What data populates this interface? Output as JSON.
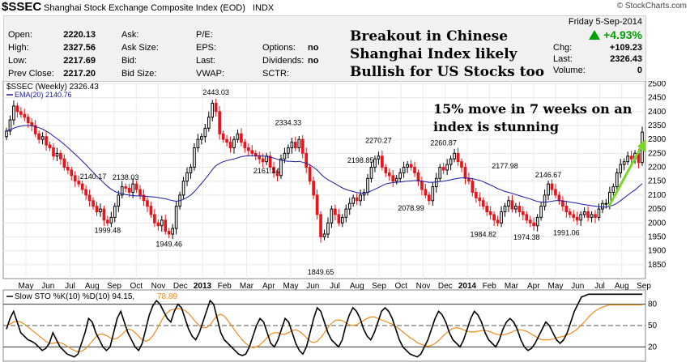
{
  "header": {
    "symbol": "$SSEC",
    "name": "Shanghai Stock Exchange Composite Index (EOD)",
    "exchange": "INDX",
    "watermark": "© StockCharts.com"
  },
  "quote": {
    "col1": [
      [
        "Open:",
        "2220.13"
      ],
      [
        "High:",
        "2327.56"
      ],
      [
        "Low:",
        "2217.69"
      ],
      [
        "Prev Close:",
        "2217.20"
      ]
    ],
    "col2": [
      "Ask:",
      "Ask Size:",
      "Bid:",
      "Bid Size:"
    ],
    "col3": [
      "P/E:",
      "EPS:",
      "Last:",
      "VWAP:"
    ],
    "col4": [
      [
        "Options:",
        "no"
      ],
      [
        "Dividends:",
        "no"
      ],
      [
        "SCTR:",
        ""
      ]
    ],
    "date": "Friday  5-Sep-2014",
    "change_pct": "+4.93%",
    "chg_label": "Chg:",
    "chg_value": "+109.23",
    "last_label": "Last:",
    "last_value": "2326.43",
    "volume_label": "Volume:",
    "volume_value": "0"
  },
  "headline": "Breakout in Chinese\nShanghai Index likely\nBullish for US Stocks too",
  "annotation": "15% move in 7 weeks on an\nindex is stunning",
  "colors": {
    "up": "#000000",
    "down": "#e8141a",
    "ema": "#1a1aa0",
    "sto_k": "#000000",
    "sto_d": "#f08a1c",
    "arrow": "#7cd62a",
    "change_green": "#00a000"
  },
  "chart_data": {
    "type": "candlestick",
    "legend_price": "$SSEC (Weekly) 2326.43",
    "legend_ema": "EMA(20) 2140.76",
    "ylim": [
      1800,
      2510
    ],
    "yticks": [
      1850,
      1900,
      1950,
      2000,
      2050,
      2100,
      2150,
      2200,
      2250,
      2300,
      2350,
      2400,
      2450,
      2500
    ],
    "xticks": [
      "May",
      "Jun",
      "Jul",
      "Aug",
      "Sep",
      "Oct",
      "Nov",
      "Dec",
      "2013",
      "Feb",
      "Mar",
      "Apr",
      "May",
      "Jun",
      "Jul",
      "Aug",
      "Sep",
      "Oct",
      "Nov",
      "Dec",
      "2014",
      "Feb",
      "Mar",
      "Apr",
      "May",
      "Jun",
      "Jul",
      "Aug",
      "Sep"
    ],
    "close": [
      2330,
      2370,
      2420,
      2400,
      2390,
      2380,
      2360,
      2350,
      2320,
      2300,
      2310,
      2280,
      2270,
      2240,
      2250,
      2230,
      2200,
      2190,
      2170,
      2150,
      2140,
      2120,
      2100,
      2080,
      2060,
      2040,
      2050,
      2010,
      2000,
      2020,
      2060,
      2100,
      2130,
      2125,
      2110,
      2140,
      2120,
      2100,
      2080,
      2060,
      2030,
      2000,
      1990,
      2010,
      1970,
      1960,
      1980,
      2060,
      2100,
      2150,
      2180,
      2200,
      2270,
      2300,
      2310,
      2340,
      2380,
      2430,
      2400,
      2320,
      2300,
      2290,
      2270,
      2300,
      2320,
      2290,
      2270,
      2260,
      2250,
      2240,
      2230,
      2220,
      2240,
      2200,
      2180,
      2170,
      2230,
      2250,
      2270,
      2290,
      2270,
      2300,
      2250,
      2200,
      2150,
      2100,
      2030,
      1950,
      1960,
      2000,
      2050,
      2030,
      2000,
      2020,
      2050,
      2070,
      2090,
      2080,
      2100,
      2110,
      2160,
      2200,
      2230,
      2240,
      2200,
      2180,
      2170,
      2150,
      2160,
      2180,
      2200,
      2210,
      2200,
      2180,
      2150,
      2120,
      2100,
      2080,
      2130,
      2160,
      2200,
      2190,
      2210,
      2230,
      2250,
      2220,
      2200,
      2160,
      2150,
      2110,
      2090,
      2080,
      2060,
      2040,
      2030,
      2010,
      2000,
      2040,
      2060,
      2080,
      2050,
      2060,
      2040,
      2030,
      2010,
      2000,
      1990,
      2020,
      2060,
      2100,
      2140,
      2120,
      2100,
      2080,
      2060,
      2040,
      2030,
      2020,
      2010,
      2030,
      2040,
      2020,
      2030,
      2020,
      2050,
      2070,
      2070,
      2110,
      2130,
      2180,
      2210,
      2220,
      2240,
      2230,
      2250,
      2217,
      2326
    ],
    "ema": [
      2330,
      2335,
      2340,
      2345,
      2348,
      2350,
      2350,
      2349,
      2346,
      2342,
      2337,
      2330,
      2322,
      2312,
      2303,
      2293,
      2282,
      2271,
      2259,
      2247,
      2235,
      2222,
      2209,
      2195,
      2182,
      2168,
      2156,
      2143,
      2131,
      2121,
      2113,
      2108,
      2105,
      2102,
      2100,
      2098,
      2097,
      2097,
      2096,
      2095,
      2094,
      2093,
      2091,
      2089,
      2087,
      2083,
      2080,
      2078,
      2080,
      2085,
      2092,
      2100,
      2112,
      2127,
      2142,
      2158,
      2174,
      2192,
      2206,
      2214,
      2220,
      2224,
      2227,
      2230,
      2234,
      2238,
      2240,
      2241,
      2242,
      2242,
      2241,
      2240,
      2239,
      2236,
      2233,
      2229,
      2225,
      2223,
      2221,
      2221,
      2220,
      2221,
      2218,
      2214,
      2208,
      2200,
      2190,
      2176,
      2164,
      2155,
      2148,
      2141,
      2133,
      2126,
      2120,
      2116,
      2113,
      2109,
      2107,
      2106,
      2110,
      2115,
      2121,
      2127,
      2134,
      2140,
      2143,
      2145,
      2146,
      2147,
      2149,
      2150,
      2151,
      2152,
      2152,
      2150,
      2148,
      2146,
      2146,
      2147,
      2149,
      2150,
      2152,
      2155,
      2158,
      2160,
      2162,
      2162,
      2161,
      2159,
      2156,
      2153,
      2148,
      2142,
      2136,
      2130,
      2123,
      2118,
      2113,
      2110,
      2106,
      2102,
      2098,
      2094,
      2090,
      2086,
      2081,
      2077,
      2075,
      2074,
      2076,
      2078,
      2080,
      2080,
      2079,
      2077,
      2075,
      2073,
      2071,
      2068,
      2066,
      2064,
      2062,
      2060,
      2058,
      2057,
      2057,
      2060,
      2064,
      2071,
      2080,
      2090,
      2100,
      2110,
      2118,
      2130,
      2141
    ],
    "annotations": [
      {
        "label": "2140.17",
        "x": 24,
        "y": 2140.17
      },
      {
        "label": "1999.48",
        "x": 28,
        "y": 1999.48
      },
      {
        "label": "2138.03",
        "x": 33,
        "y": 2138.03
      },
      {
        "label": "1949.46",
        "x": 45,
        "y": 1949.46
      },
      {
        "label": "2443.03",
        "x": 58,
        "y": 2443.03
      },
      {
        "label": "2161.14",
        "x": 72,
        "y": 2161.14
      },
      {
        "label": "2334.33",
        "x": 78,
        "y": 2334.33
      },
      {
        "label": "1849.65",
        "x": 87,
        "y": 1849.65
      },
      {
        "label": "2198.85",
        "x": 98,
        "y": 2198.85
      },
      {
        "label": "2270.27",
        "x": 103,
        "y": 2270.27
      },
      {
        "label": "2078.99",
        "x": 112,
        "y": 2078.99
      },
      {
        "label": "2260.87",
        "x": 121,
        "y": 2260.87
      },
      {
        "label": "1984.82",
        "x": 132,
        "y": 1984.82
      },
      {
        "label": "2177.98",
        "x": 138,
        "y": 2177.98
      },
      {
        "label": "1974.38",
        "x": 144,
        "y": 1974.38
      },
      {
        "label": "2146.67",
        "x": 150,
        "y": 2146.67
      },
      {
        "label": "1991.06",
        "x": 155,
        "y": 1991.06
      }
    ],
    "stochastic": {
      "legend": "Slow STO %K(10) %D(10) 94.15,",
      "legend_d_value": "78.89",
      "ylim": [
        0,
        100
      ],
      "yticks": [
        20,
        50,
        80
      ],
      "k": [
        45,
        60,
        70,
        55,
        40,
        35,
        30,
        28,
        25,
        20,
        15,
        18,
        25,
        40,
        30,
        20,
        15,
        10,
        8,
        6,
        10,
        25,
        40,
        60,
        55,
        40,
        30,
        20,
        15,
        20,
        40,
        60,
        70,
        55,
        40,
        30,
        20,
        15,
        25,
        45,
        65,
        78,
        85,
        80,
        70,
        60,
        55,
        70,
        80,
        75,
        60,
        45,
        35,
        30,
        40,
        55,
        70,
        85,
        80,
        60,
        40,
        30,
        25,
        20,
        15,
        10,
        8,
        10,
        20,
        35,
        50,
        60,
        55,
        40,
        25,
        20,
        30,
        45,
        60,
        55,
        40,
        25,
        15,
        10,
        20,
        40,
        60,
        75,
        70,
        55,
        40,
        30,
        25,
        20,
        30,
        50,
        65,
        75,
        70,
        60,
        45,
        35,
        30,
        40,
        55,
        70,
        75,
        70,
        60,
        45,
        30,
        20,
        15,
        10,
        8,
        6,
        10,
        20,
        30,
        45,
        60,
        70,
        65,
        55,
        40,
        30,
        25,
        20,
        30,
        45,
        60,
        70,
        65,
        55,
        40,
        30,
        25,
        20,
        30,
        45,
        55,
        60,
        55,
        45,
        30,
        20,
        15,
        18,
        25,
        35,
        45,
        55,
        50,
        40,
        30,
        25,
        30,
        40,
        55,
        70,
        80,
        90,
        92,
        94,
        94,
        94,
        94,
        94,
        94,
        94,
        94,
        94,
        94,
        94,
        94,
        94,
        94,
        94,
        94
      ],
      "d": [
        50,
        52,
        55,
        56,
        55,
        52,
        48,
        44,
        40,
        36,
        32,
        28,
        25,
        25,
        26,
        26,
        24,
        21,
        18,
        15,
        13,
        14,
        17,
        22,
        28,
        34,
        38,
        38,
        36,
        33,
        31,
        32,
        36,
        41,
        45,
        44,
        40,
        35,
        30,
        28,
        30,
        36,
        44,
        53,
        62,
        68,
        72,
        73,
        74,
        73,
        71,
        67,
        61,
        55,
        50,
        47,
        47,
        51,
        58,
        64,
        66,
        63,
        57,
        50,
        43,
        36,
        30,
        25,
        21,
        19,
        20,
        23,
        28,
        33,
        38,
        40,
        40,
        38,
        38,
        40,
        43,
        44,
        42,
        38,
        33,
        28,
        26,
        28,
        33,
        40,
        47,
        53,
        57,
        58,
        57,
        54,
        51,
        50,
        51,
        54,
        57,
        60,
        62,
        62,
        60,
        58,
        56,
        54,
        52,
        49,
        45,
        41,
        37,
        33,
        30,
        26,
        24,
        22,
        21,
        22,
        25,
        29,
        34,
        39,
        43,
        46,
        47,
        46,
        44,
        42,
        41,
        41,
        42,
        43,
        43,
        42,
        40,
        38,
        37,
        37,
        38,
        40,
        42,
        44,
        44,
        43,
        41,
        38,
        35,
        32,
        30,
        30,
        30,
        31,
        33,
        34,
        35,
        37,
        39,
        42,
        46,
        51,
        56,
        62,
        67,
        71,
        74,
        76,
        78,
        79,
        79,
        79,
        79,
        79,
        79,
        79,
        79,
        79,
        79
      ]
    }
  }
}
